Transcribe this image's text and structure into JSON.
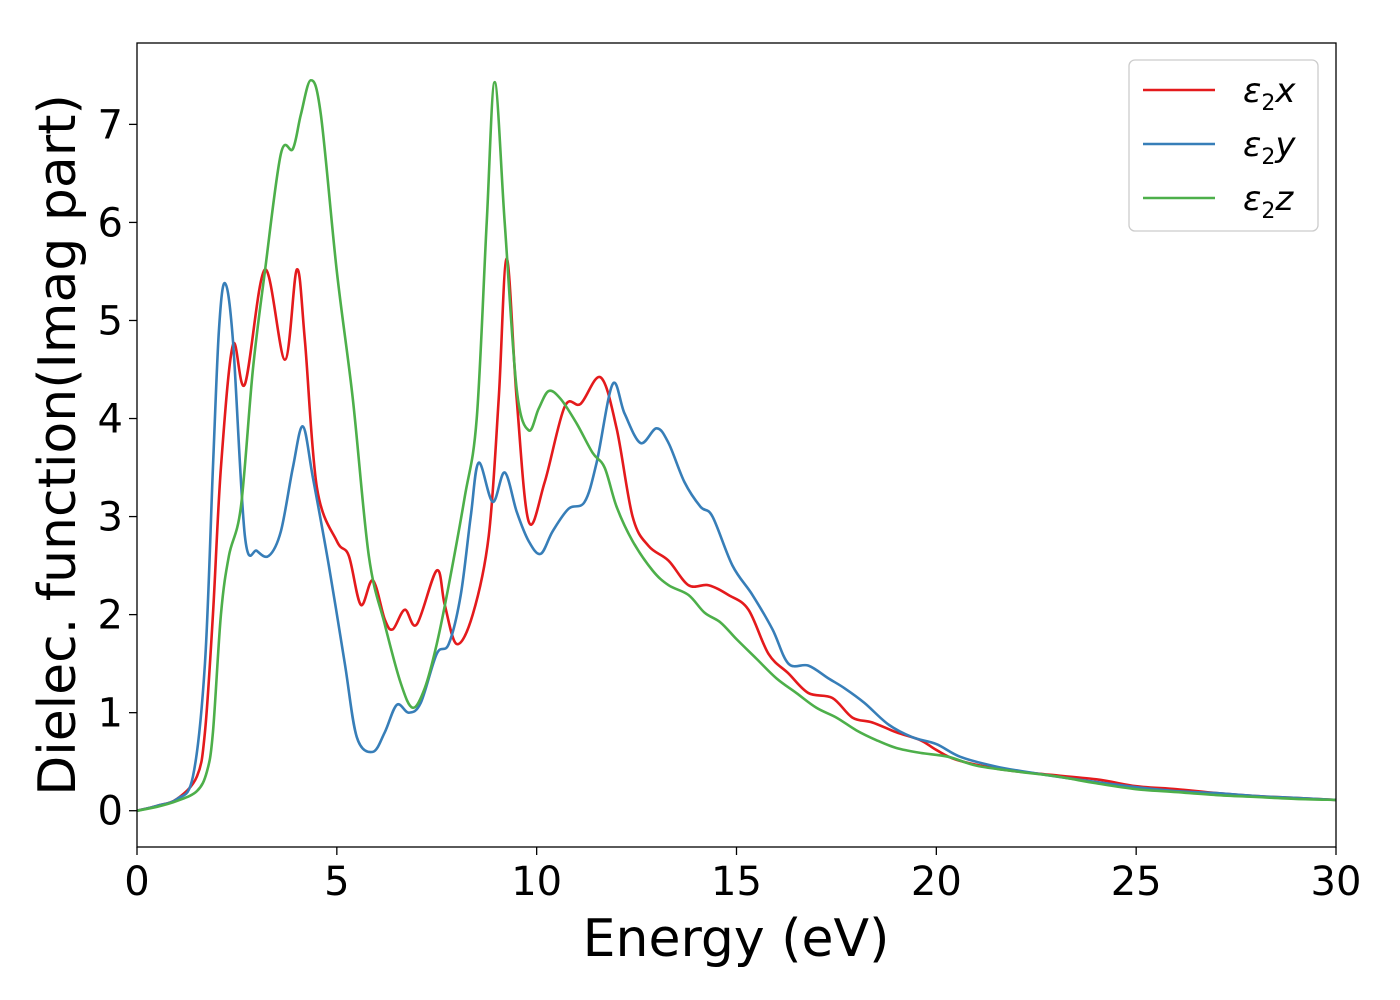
{
  "chart_data": {
    "type": "line",
    "title": "",
    "xlabel": "Energy (eV)",
    "ylabel": "Dielec. function(Imag part)",
    "xlim": [
      0,
      30
    ],
    "ylim": [
      -0.37,
      7.83
    ],
    "xticks": [
      0,
      5,
      10,
      15,
      20,
      25,
      30
    ],
    "yticks": [
      0,
      1,
      2,
      3,
      4,
      5,
      6,
      7
    ],
    "grid": false,
    "legend_position": "top-right",
    "series": [
      {
        "name": "ε₂x",
        "legend_base": "ε",
        "legend_sub": "2",
        "legend_suffix": "x",
        "color": "#e41a1c",
        "points": [
          [
            0,
            0.0
          ],
          [
            0.5,
            0.05
          ],
          [
            1.0,
            0.12
          ],
          [
            1.5,
            0.35
          ],
          [
            1.7,
            0.8
          ],
          [
            1.9,
            2.0
          ],
          [
            2.1,
            3.5
          ],
          [
            2.4,
            4.75
          ],
          [
            2.7,
            4.35
          ],
          [
            3.2,
            5.52
          ],
          [
            3.7,
            4.6
          ],
          [
            4.0,
            5.52
          ],
          [
            4.2,
            4.8
          ],
          [
            4.5,
            3.3
          ],
          [
            5.0,
            2.75
          ],
          [
            5.3,
            2.6
          ],
          [
            5.6,
            2.1
          ],
          [
            5.9,
            2.35
          ],
          [
            6.2,
            1.95
          ],
          [
            6.4,
            1.85
          ],
          [
            6.7,
            2.05
          ],
          [
            7.0,
            1.9
          ],
          [
            7.5,
            2.45
          ],
          [
            7.7,
            2.1
          ],
          [
            8.0,
            1.7
          ],
          [
            8.4,
            2.0
          ],
          [
            8.8,
            2.8
          ],
          [
            9.05,
            4.2
          ],
          [
            9.25,
            5.63
          ],
          [
            9.5,
            4.2
          ],
          [
            9.8,
            2.95
          ],
          [
            10.2,
            3.35
          ],
          [
            10.7,
            4.12
          ],
          [
            11.1,
            4.15
          ],
          [
            11.6,
            4.42
          ],
          [
            12.0,
            3.9
          ],
          [
            12.4,
            3.0
          ],
          [
            12.8,
            2.7
          ],
          [
            13.3,
            2.55
          ],
          [
            13.8,
            2.3
          ],
          [
            14.3,
            2.3
          ],
          [
            14.8,
            2.2
          ],
          [
            15.3,
            2.05
          ],
          [
            15.8,
            1.6
          ],
          [
            16.3,
            1.4
          ],
          [
            16.8,
            1.2
          ],
          [
            17.4,
            1.15
          ],
          [
            17.9,
            0.95
          ],
          [
            18.4,
            0.9
          ],
          [
            19.0,
            0.8
          ],
          [
            19.6,
            0.72
          ],
          [
            20.0,
            0.62
          ],
          [
            20.5,
            0.52
          ],
          [
            21.5,
            0.43
          ],
          [
            22.5,
            0.38
          ],
          [
            24.0,
            0.32
          ],
          [
            25.0,
            0.25
          ],
          [
            26.0,
            0.22
          ],
          [
            27.0,
            0.18
          ],
          [
            28.0,
            0.15
          ],
          [
            29.0,
            0.13
          ],
          [
            30.0,
            0.11
          ]
        ]
      },
      {
        "name": "ε₂y",
        "legend_base": "ε",
        "legend_sub": "2",
        "legend_suffix": "y",
        "color": "#377eb8",
        "points": [
          [
            0,
            0.0
          ],
          [
            0.5,
            0.05
          ],
          [
            1.0,
            0.12
          ],
          [
            1.4,
            0.35
          ],
          [
            1.7,
            1.5
          ],
          [
            1.9,
            3.5
          ],
          [
            2.05,
            4.9
          ],
          [
            2.2,
            5.38
          ],
          [
            2.4,
            4.8
          ],
          [
            2.7,
            2.8
          ],
          [
            3.0,
            2.65
          ],
          [
            3.3,
            2.6
          ],
          [
            3.6,
            2.85
          ],
          [
            3.9,
            3.5
          ],
          [
            4.15,
            3.92
          ],
          [
            4.4,
            3.4
          ],
          [
            4.8,
            2.5
          ],
          [
            5.2,
            1.5
          ],
          [
            5.5,
            0.75
          ],
          [
            5.9,
            0.6
          ],
          [
            6.2,
            0.8
          ],
          [
            6.5,
            1.08
          ],
          [
            6.8,
            1.0
          ],
          [
            7.1,
            1.1
          ],
          [
            7.5,
            1.6
          ],
          [
            7.8,
            1.7
          ],
          [
            8.1,
            2.2
          ],
          [
            8.35,
            3.0
          ],
          [
            8.55,
            3.55
          ],
          [
            8.9,
            3.15
          ],
          [
            9.2,
            3.45
          ],
          [
            9.5,
            3.05
          ],
          [
            9.8,
            2.75
          ],
          [
            10.1,
            2.62
          ],
          [
            10.4,
            2.85
          ],
          [
            10.8,
            3.08
          ],
          [
            11.2,
            3.15
          ],
          [
            11.5,
            3.55
          ],
          [
            11.9,
            4.35
          ],
          [
            12.2,
            4.05
          ],
          [
            12.6,
            3.75
          ],
          [
            13.0,
            3.9
          ],
          [
            13.3,
            3.75
          ],
          [
            13.7,
            3.35
          ],
          [
            14.1,
            3.1
          ],
          [
            14.4,
            3.0
          ],
          [
            14.9,
            2.5
          ],
          [
            15.4,
            2.2
          ],
          [
            15.9,
            1.85
          ],
          [
            16.3,
            1.5
          ],
          [
            16.8,
            1.48
          ],
          [
            17.3,
            1.35
          ],
          [
            17.7,
            1.25
          ],
          [
            18.2,
            1.1
          ],
          [
            18.8,
            0.88
          ],
          [
            19.4,
            0.75
          ],
          [
            20.0,
            0.68
          ],
          [
            20.6,
            0.55
          ],
          [
            21.5,
            0.45
          ],
          [
            22.5,
            0.38
          ],
          [
            23.5,
            0.32
          ],
          [
            25.0,
            0.24
          ],
          [
            26.0,
            0.2
          ],
          [
            27.0,
            0.18
          ],
          [
            28.0,
            0.15
          ],
          [
            29.0,
            0.13
          ],
          [
            30.0,
            0.11
          ]
        ]
      },
      {
        "name": "ε₂z",
        "legend_base": "ε",
        "legend_sub": "2",
        "legend_suffix": "z",
        "color": "#4daf4a",
        "points": [
          [
            0,
            0.0
          ],
          [
            0.5,
            0.04
          ],
          [
            1.0,
            0.1
          ],
          [
            1.5,
            0.2
          ],
          [
            1.75,
            0.4
          ],
          [
            1.9,
            0.8
          ],
          [
            2.1,
            2.0
          ],
          [
            2.3,
            2.6
          ],
          [
            2.6,
            3.1
          ],
          [
            2.9,
            4.5
          ],
          [
            3.2,
            5.5
          ],
          [
            3.6,
            6.7
          ],
          [
            3.9,
            6.75
          ],
          [
            4.1,
            7.1
          ],
          [
            4.35,
            7.45
          ],
          [
            4.6,
            7.1
          ],
          [
            5.0,
            5.5
          ],
          [
            5.4,
            4.2
          ],
          [
            5.8,
            2.6
          ],
          [
            6.2,
            1.9
          ],
          [
            6.6,
            1.3
          ],
          [
            6.9,
            1.05
          ],
          [
            7.2,
            1.25
          ],
          [
            7.5,
            1.7
          ],
          [
            7.8,
            2.3
          ],
          [
            8.2,
            3.2
          ],
          [
            8.5,
            4.0
          ],
          [
            8.75,
            6.0
          ],
          [
            8.95,
            7.43
          ],
          [
            9.2,
            6.0
          ],
          [
            9.5,
            4.3
          ],
          [
            9.8,
            3.88
          ],
          [
            10.05,
            4.1
          ],
          [
            10.3,
            4.28
          ],
          [
            10.6,
            4.2
          ],
          [
            11.0,
            3.95
          ],
          [
            11.4,
            3.65
          ],
          [
            11.7,
            3.5
          ],
          [
            12.0,
            3.1
          ],
          [
            12.4,
            2.75
          ],
          [
            12.9,
            2.45
          ],
          [
            13.3,
            2.3
          ],
          [
            13.8,
            2.2
          ],
          [
            14.2,
            2.02
          ],
          [
            14.6,
            1.92
          ],
          [
            15.0,
            1.75
          ],
          [
            15.5,
            1.55
          ],
          [
            16.0,
            1.35
          ],
          [
            16.5,
            1.2
          ],
          [
            17.0,
            1.05
          ],
          [
            17.5,
            0.95
          ],
          [
            18.0,
            0.82
          ],
          [
            18.5,
            0.72
          ],
          [
            19.0,
            0.64
          ],
          [
            19.6,
            0.59
          ],
          [
            20.3,
            0.55
          ],
          [
            21.0,
            0.46
          ],
          [
            22.0,
            0.4
          ],
          [
            23.0,
            0.35
          ],
          [
            24.0,
            0.28
          ],
          [
            25.0,
            0.22
          ],
          [
            26.0,
            0.19
          ],
          [
            27.0,
            0.16
          ],
          [
            28.0,
            0.14
          ],
          [
            29.0,
            0.12
          ],
          [
            30.0,
            0.11
          ]
        ]
      }
    ]
  }
}
